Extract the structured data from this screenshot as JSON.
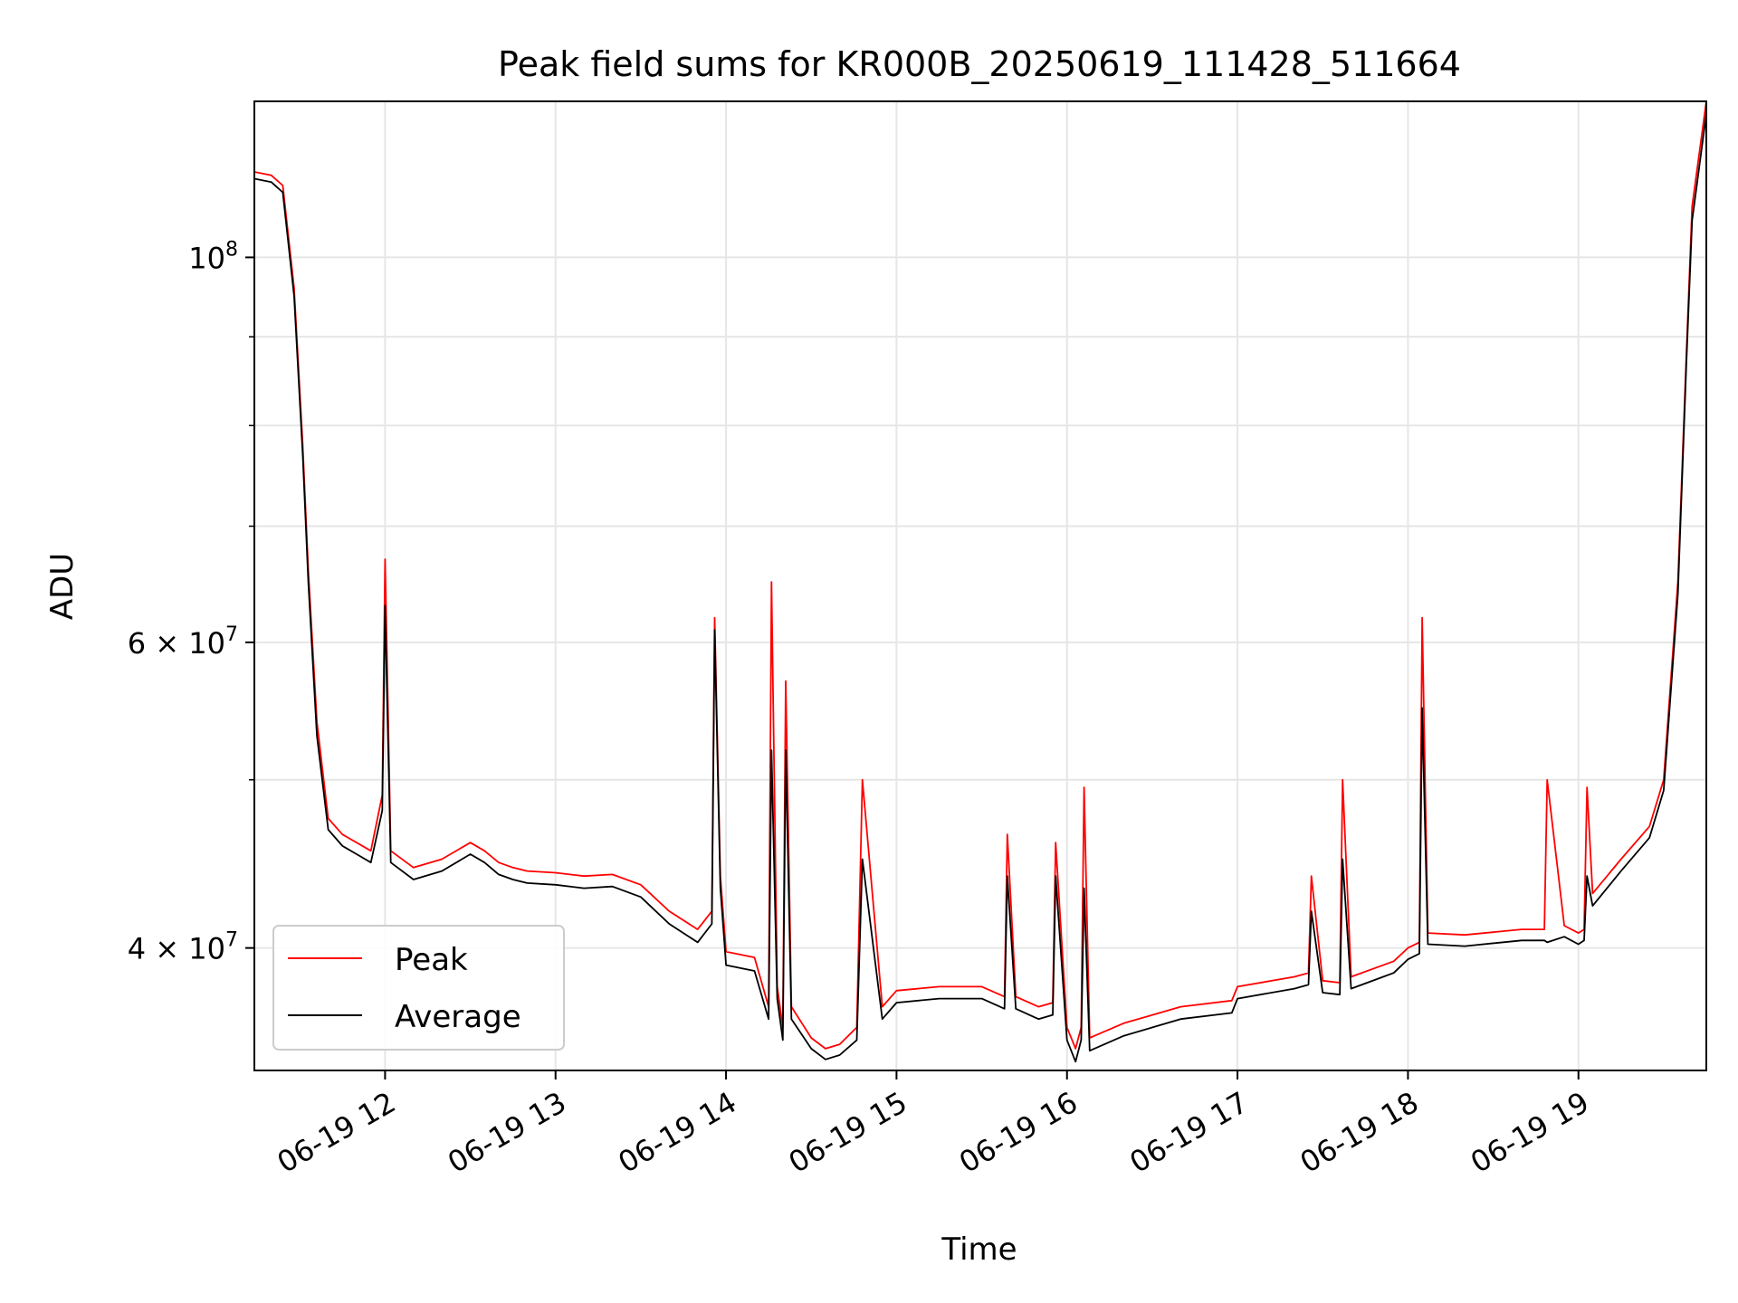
{
  "chart_data": {
    "type": "line",
    "title": "Peak field sums for KR000B_20250619_111428_511664",
    "xlabel": "Time",
    "ylabel": "ADU",
    "yscale": "log",
    "xlim": [
      "2025-06-19 11:14",
      "2025-06-19 19:45"
    ],
    "ylim": [
      34000000,
      123000000
    ],
    "grid": true,
    "legend_position": "lower-left",
    "x_tick_labels": [
      "06-19 12",
      "06-19 13",
      "06-19 14",
      "06-19 15",
      "06-19 16",
      "06-19 17",
      "06-19 18",
      "06-19 19"
    ],
    "x_ticks": [
      "2025-06-19 12:00",
      "2025-06-19 13:00",
      "2025-06-19 14:00",
      "2025-06-19 15:00",
      "2025-06-19 16:00",
      "2025-06-19 17:00",
      "2025-06-19 18:00",
      "2025-06-19 19:00"
    ],
    "y_major_ticks": [
      {
        "value": 100000000,
        "base": "10",
        "exp": "8",
        "mantissa": ""
      },
      {
        "value": 60000000,
        "base": "10",
        "exp": "7",
        "mantissa": "6 × "
      },
      {
        "value": 40000000,
        "base": "10",
        "exp": "7",
        "mantissa": "4 × "
      }
    ],
    "y_minor_ticks": [
      50000000,
      70000000,
      80000000,
      90000000
    ],
    "x": [
      "2025-06-19 11:14",
      "2025-06-19 11:20",
      "2025-06-19 11:24",
      "2025-06-19 11:28",
      "2025-06-19 11:31",
      "2025-06-19 11:33",
      "2025-06-19 11:36",
      "2025-06-19 11:40",
      "2025-06-19 11:45",
      "2025-06-19 11:50",
      "2025-06-19 11:55",
      "2025-06-19 11:59",
      "2025-06-19 12:00",
      "2025-06-19 12:02",
      "2025-06-19 12:10",
      "2025-06-19 12:20",
      "2025-06-19 12:30",
      "2025-06-19 12:35",
      "2025-06-19 12:40",
      "2025-06-19 12:45",
      "2025-06-19 12:50",
      "2025-06-19 13:00",
      "2025-06-19 13:10",
      "2025-06-19 13:20",
      "2025-06-19 13:30",
      "2025-06-19 13:40",
      "2025-06-19 13:50",
      "2025-06-19 13:55",
      "2025-06-19 13:56",
      "2025-06-19 13:58",
      "2025-06-19 14:00",
      "2025-06-19 14:10",
      "2025-06-19 14:15",
      "2025-06-19 14:16",
      "2025-06-19 14:18",
      "2025-06-19 14:20",
      "2025-06-19 14:21",
      "2025-06-19 14:23",
      "2025-06-19 14:30",
      "2025-06-19 14:35",
      "2025-06-19 14:40",
      "2025-06-19 14:46",
      "2025-06-19 14:48",
      "2025-06-19 14:55",
      "2025-06-19 15:00",
      "2025-06-19 15:15",
      "2025-06-19 15:30",
      "2025-06-19 15:38",
      "2025-06-19 15:39",
      "2025-06-19 15:42",
      "2025-06-19 15:50",
      "2025-06-19 15:55",
      "2025-06-19 15:56",
      "2025-06-19 16:00",
      "2025-06-19 16:03",
      "2025-06-19 16:05",
      "2025-06-19 16:06",
      "2025-06-19 16:08",
      "2025-06-19 16:20",
      "2025-06-19 16:40",
      "2025-06-19 16:58",
      "2025-06-19 17:00",
      "2025-06-19 17:20",
      "2025-06-19 17:25",
      "2025-06-19 17:26",
      "2025-06-19 17:30",
      "2025-06-19 17:36",
      "2025-06-19 17:37",
      "2025-06-19 17:40",
      "2025-06-19 17:55",
      "2025-06-19 18:00",
      "2025-06-19 18:04",
      "2025-06-19 18:05",
      "2025-06-19 18:07",
      "2025-06-19 18:20",
      "2025-06-19 18:40",
      "2025-06-19 18:48",
      "2025-06-19 18:49",
      "2025-06-19 18:55",
      "2025-06-19 19:00",
      "2025-06-19 19:02",
      "2025-06-19 19:03",
      "2025-06-19 19:05",
      "2025-06-19 19:15",
      "2025-06-19 19:25",
      "2025-06-19 19:30",
      "2025-06-19 19:35",
      "2025-06-19 19:38",
      "2025-06-19 19:40",
      "2025-06-19 19:45"
    ],
    "series": [
      {
        "name": "Peak",
        "color": "#ff0000",
        "values": [
          112000000,
          111500000,
          110000000,
          96000000,
          78000000,
          66000000,
          54000000,
          47500000,
          46500000,
          46000000,
          45500000,
          49000000,
          67000000,
          45500000,
          44500000,
          45000000,
          46000000,
          45500000,
          44800000,
          44500000,
          44300000,
          44200000,
          44000000,
          44100000,
          43500000,
          42000000,
          41000000,
          42000000,
          62000000,
          44000000,
          39800000,
          39500000,
          37000000,
          65000000,
          38000000,
          36000000,
          57000000,
          37000000,
          35500000,
          35000000,
          35200000,
          36000000,
          50000000,
          37000000,
          37800000,
          38000000,
          38000000,
          37500000,
          46500000,
          37500000,
          37000000,
          37200000,
          46000000,
          36000000,
          35000000,
          36000000,
          49500000,
          35500000,
          36200000,
          37000000,
          37300000,
          38000000,
          38500000,
          38700000,
          44000000,
          38300000,
          38200000,
          50000000,
          38500000,
          39300000,
          40000000,
          40300000,
          62000000,
          40800000,
          40700000,
          41000000,
          41000000,
          50000000,
          41200000,
          40800000,
          41000000,
          49500000,
          43000000,
          45000000,
          47000000,
          50000000,
          65000000,
          88000000,
          107000000,
          123000000
        ]
      },
      {
        "name": "Average",
        "color": "#000000",
        "values": [
          111000000,
          110500000,
          109000000,
          95000000,
          77000000,
          65000000,
          53000000,
          46800000,
          45800000,
          45300000,
          44800000,
          48000000,
          63000000,
          44800000,
          43800000,
          44300000,
          45300000,
          44800000,
          44100000,
          43800000,
          43600000,
          43500000,
          43300000,
          43400000,
          42800000,
          41300000,
          40300000,
          41300000,
          61000000,
          43300000,
          39100000,
          38800000,
          36400000,
          52000000,
          37400000,
          35400000,
          52000000,
          36400000,
          35000000,
          34500000,
          34700000,
          35400000,
          45000000,
          36400000,
          37200000,
          37400000,
          37400000,
          36900000,
          44000000,
          36900000,
          36400000,
          36600000,
          44000000,
          35400000,
          34400000,
          35400000,
          43300000,
          34900000,
          35600000,
          36400000,
          36700000,
          37400000,
          37900000,
          38100000,
          42000000,
          37700000,
          37600000,
          45000000,
          37900000,
          38700000,
          39400000,
          39700000,
          55000000,
          40200000,
          40100000,
          40400000,
          40400000,
          40300000,
          40600000,
          40200000,
          40400000,
          44000000,
          42300000,
          44300000,
          46300000,
          49300000,
          64000000,
          87000000,
          105000000,
          121000000
        ]
      }
    ]
  }
}
